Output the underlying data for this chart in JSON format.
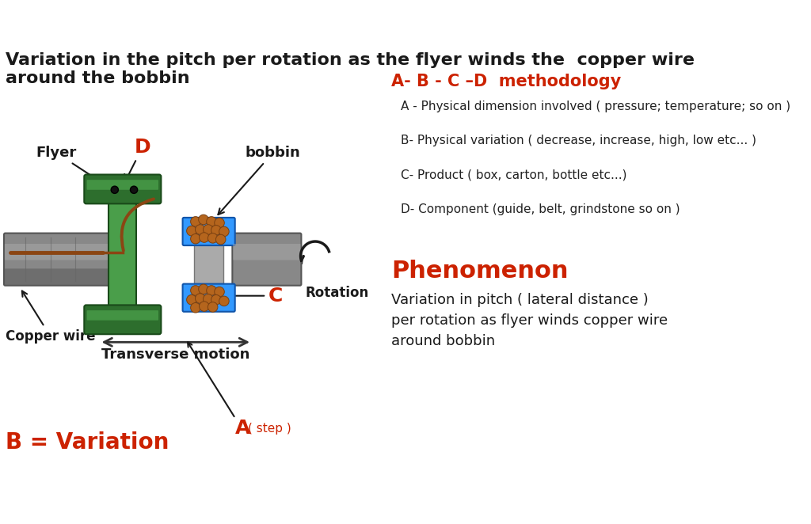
{
  "title": "Variation in the pitch per rotation as the flyer winds the  copper wire\naround the bobbin",
  "title_fontsize": 16,
  "title_color": "#1a1a1a",
  "bg_color": "#ffffff",
  "abcd_title": "A- B - C –D  methodology",
  "abcd_title_color": "#cc2200",
  "abcd_title_fontsize": 15,
  "abcd_items": [
    "A - Physical dimension involved ( pressure; temperature; so on )",
    "B- Physical variation ( decrease, increase, high, low etc... )",
    "C- Product ( box, carton, bottle etc...)",
    "D- Component (guide, belt, grindstone so on )"
  ],
  "abcd_fontsize": 11,
  "phenomenon_title": "Phenomenon",
  "phenomenon_color": "#cc2200",
  "phenomenon_fontsize": 22,
  "phenomenon_text": "Variation in pitch ( lateral distance )\nper rotation as flyer winds copper wire\naround bobbin",
  "phenomenon_text_fontsize": 13,
  "b_variation_text": "B = Variation",
  "b_variation_color": "#cc2200",
  "b_variation_fontsize": 20,
  "label_flyer": "Flyer",
  "label_bobbin": "bobbin",
  "label_D": "D",
  "label_C": "C",
  "label_A": "A",
  "label_A_sub": "( step )",
  "label_copper_wire": "Copper wire",
  "label_rotation": "Rotation",
  "label_transverse": "Transverse motion",
  "red_color": "#cc2200",
  "green_dark": "#2d6e2d",
  "green_light": "#4a9e4a",
  "blue_bobbin": "#3399ff",
  "gray_shaft": "#888888",
  "brown_wire": "#8B4513",
  "copper_ball": "#b5651d"
}
